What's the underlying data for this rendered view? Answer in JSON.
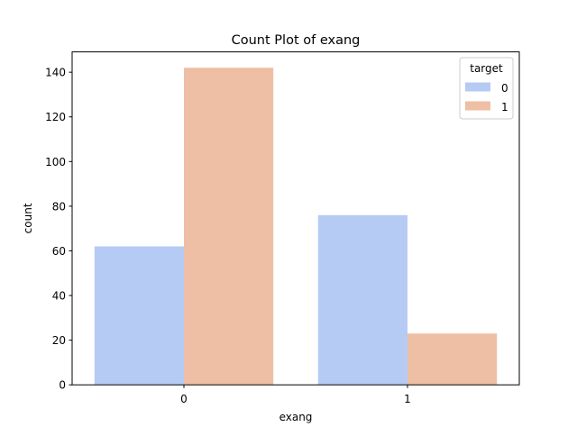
{
  "chart_data": {
    "type": "bar",
    "title": "Count Plot of exang",
    "xlabel": "exang",
    "ylabel": "count",
    "categories": [
      "0",
      "1"
    ],
    "series": [
      {
        "name": "0",
        "values": [
          62,
          76
        ],
        "color": "#b6cbf4"
      },
      {
        "name": "1",
        "values": [
          142,
          23
        ],
        "color": "#eebfa5"
      }
    ],
    "ylim": [
      0,
      149.1
    ],
    "yticks": [
      0,
      20,
      40,
      60,
      80,
      100,
      120,
      140
    ],
    "grid": false,
    "legend": {
      "title": "target",
      "placement": "top-right"
    }
  }
}
